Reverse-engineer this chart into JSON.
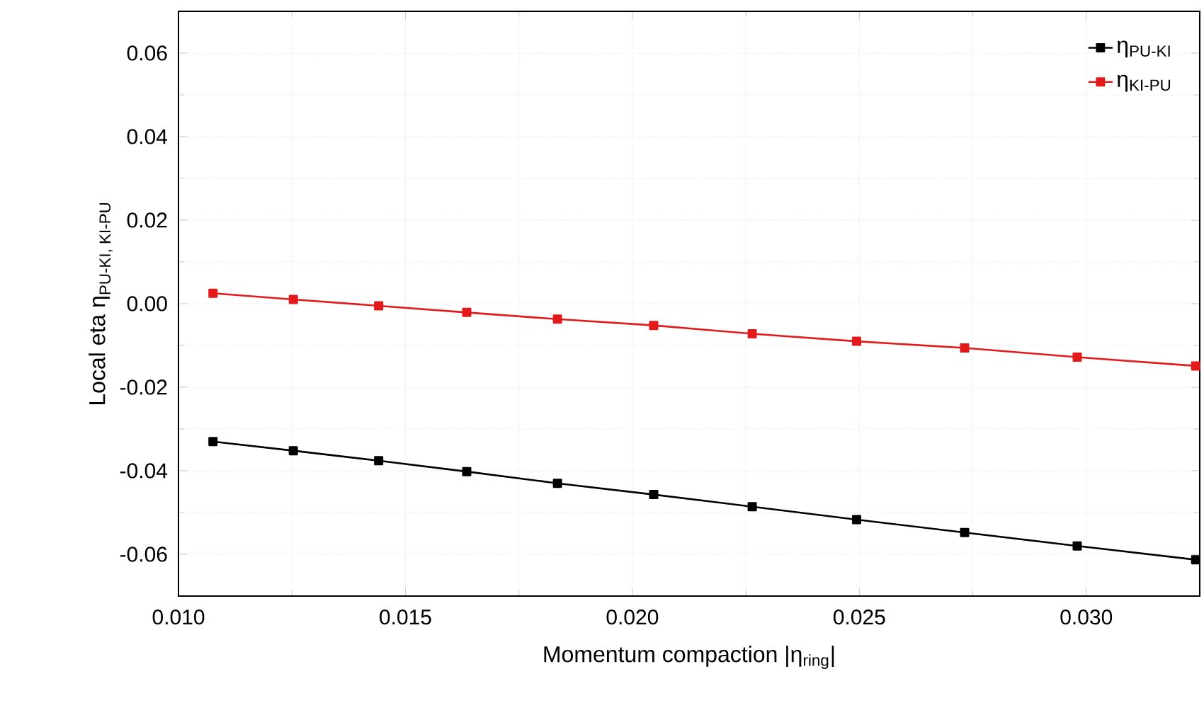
{
  "chart_data": {
    "type": "line",
    "xlabel": "Momentum compaction |η$_{ring}$|",
    "ylabel": "\\text{Local eta η}_{\\text{PU-KI, KI-PU}}",
    "x": [
      0.01076,
      0.01253,
      0.01441,
      0.01635,
      0.01835,
      0.02047,
      0.02264,
      0.02494,
      0.02732,
      0.0298,
      0.03241
    ],
    "series": [
      {
        "name": "η$_{PU-KI}$",
        "color": "#000000",
        "values": [
          -0.033,
          -0.0352,
          -0.0376,
          -0.0402,
          -0.043,
          -0.0457,
          -0.0486,
          -0.0517,
          -0.0548,
          -0.058,
          -0.0613
        ]
      },
      {
        "name": "η$_{KI-PU}$",
        "color": "#e31a1c",
        "values": [
          0.0025,
          0.001,
          -0.0005,
          -0.0021,
          -0.0037,
          -0.0052,
          -0.0072,
          -0.009,
          -0.0106,
          -0.0128,
          -0.0149
        ]
      }
    ],
    "xlim": [
      0.01,
      0.0325
    ],
    "ylim": [
      -0.07,
      0.07
    ],
    "xticks": [
      {
        "value": 0.01,
        "label": "0.010"
      },
      {
        "value": 0.015,
        "label": "0.015"
      },
      {
        "value": 0.02,
        "label": "0.020"
      },
      {
        "value": 0.025,
        "label": "0.025"
      },
      {
        "value": 0.03,
        "label": "0.030"
      }
    ],
    "yticks": [
      {
        "value": -0.06,
        "label": "-0.06"
      },
      {
        "value": -0.04,
        "label": "-0.04"
      },
      {
        "value": -0.02,
        "label": "-0.02"
      },
      {
        "value": 0.0,
        "label": "0.00"
      },
      {
        "value": 0.02,
        "label": "0.02"
      },
      {
        "value": 0.04,
        "label": "0.04"
      },
      {
        "value": 0.06,
        "label": "0.06"
      }
    ],
    "grid": true,
    "legend": "top right",
    "marker": "square",
    "line_style": "solid"
  }
}
